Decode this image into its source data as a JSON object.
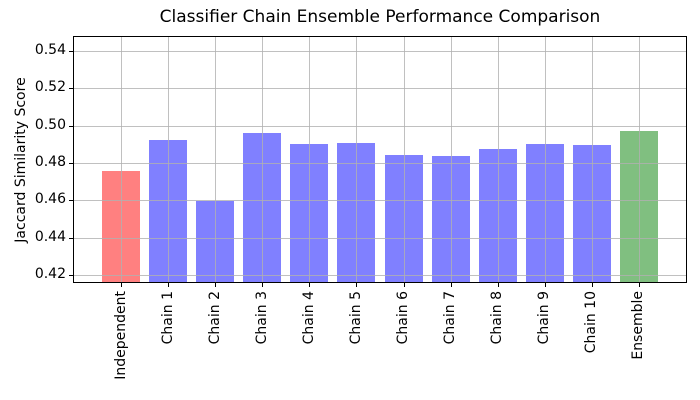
{
  "chart_data": {
    "type": "bar",
    "title": "Classifier Chain Ensemble Performance Comparison",
    "xlabel": "",
    "ylabel": "Jaccard Similarity Score",
    "categories": [
      "Independent",
      "Chain 1",
      "Chain 2",
      "Chain 3",
      "Chain 4",
      "Chain 5",
      "Chain 6",
      "Chain 7",
      "Chain 8",
      "Chain 9",
      "Chain 10",
      "Ensemble"
    ],
    "values": [
      0.4757,
      0.4922,
      0.4596,
      0.4962,
      0.4904,
      0.4905,
      0.4841,
      0.4836,
      0.4877,
      0.49,
      0.4895,
      0.4973
    ],
    "bar_colors": [
      "#ff8080",
      "#8080ff",
      "#8080ff",
      "#8080ff",
      "#8080ff",
      "#8080ff",
      "#8080ff",
      "#8080ff",
      "#8080ff",
      "#8080ff",
      "#8080ff",
      "#80bf80"
    ],
    "color_legend": {
      "independent_model": "#ff8080",
      "chain_models": "#8080ff",
      "ensemble_model": "#80bf80"
    },
    "yticks": [
      0.42,
      0.44,
      0.46,
      0.48,
      0.5,
      0.52,
      0.54
    ],
    "ylim": [
      0.4163,
      0.5474
    ],
    "x_tick_rotation": 90,
    "grid": true,
    "grid_color": "#b0b0b0",
    "legend_position": "none"
  }
}
